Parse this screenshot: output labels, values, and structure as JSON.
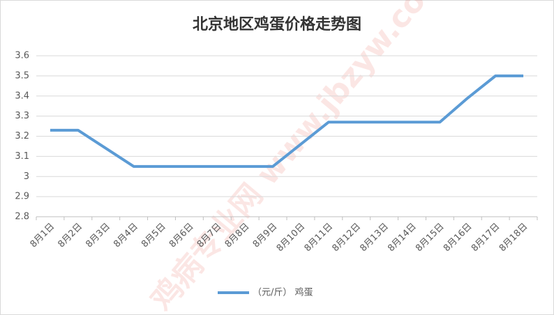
{
  "chart_data": {
    "type": "line",
    "title": "北京地区鸡蛋价格走势图",
    "categories": [
      "8月1日",
      "8月2日",
      "8月3日",
      "8月4日",
      "8月5日",
      "8月6日",
      "8月7日",
      "8月8日",
      "8月9日",
      "8月10日",
      "8月11日",
      "8月12日",
      "8月13日",
      "8月14日",
      "8月15日",
      "8月16日",
      "8月17日",
      "8月18日"
    ],
    "series": [
      {
        "name": "（元/斤） 鸡蛋",
        "color": "#5b9bd5",
        "values": [
          3.23,
          3.23,
          3.14,
          3.05,
          3.05,
          3.05,
          3.05,
          3.05,
          3.05,
          3.16,
          3.27,
          3.27,
          3.27,
          3.27,
          3.27,
          3.39,
          3.5,
          3.5
        ]
      }
    ],
    "ylim": [
      2.8,
      3.6
    ],
    "yticks": [
      2.8,
      2.9,
      3,
      3.1,
      3.2,
      3.3,
      3.4,
      3.5,
      3.6
    ],
    "grid": true,
    "legend": "bottom",
    "watermark": "鸡病专业网 www.jbzyw.com"
  }
}
